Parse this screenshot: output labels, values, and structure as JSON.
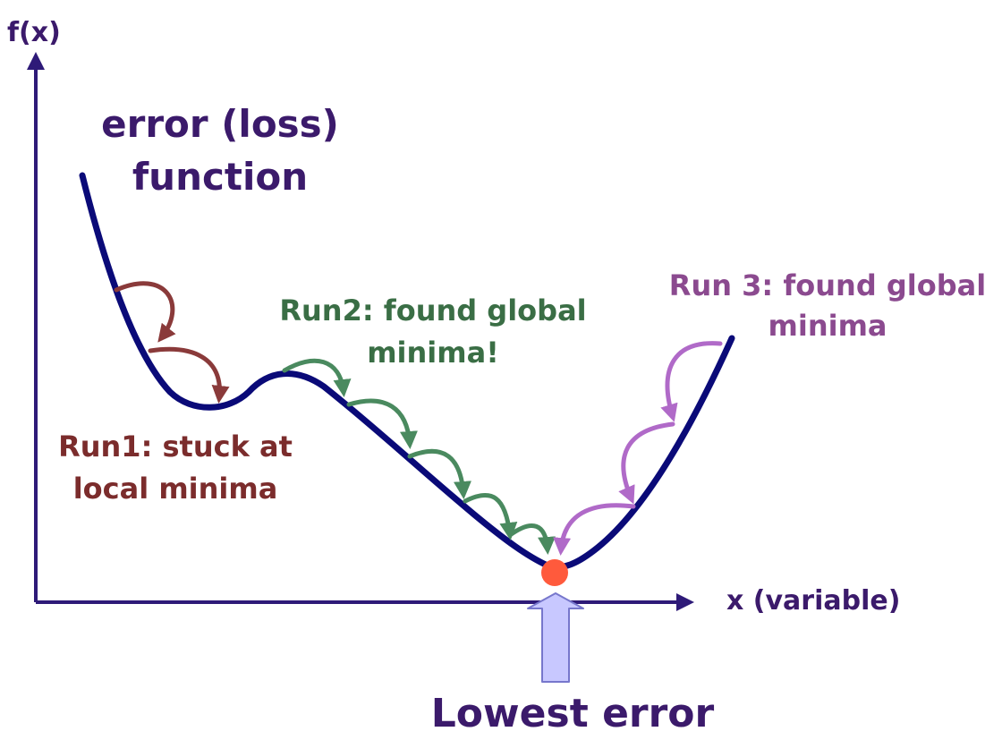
{
  "axes": {
    "y_label": "f(x)",
    "x_label": "x (variable)"
  },
  "curve": {
    "title_line1": "error (loss)",
    "title_line2": "function"
  },
  "runs": [
    {
      "line1": "Run1: stuck at",
      "line2": "local minima",
      "color": "#7b2c2c"
    },
    {
      "line1": "Run2: found global",
      "line2": "minima!",
      "color": "#3a6e45"
    },
    {
      "line1": "Run 3: found global",
      "line2": "minima",
      "color": "#8b4a8f"
    }
  ],
  "minimum": {
    "label": "Lowest error"
  },
  "colors": {
    "axis": "#2e1a78",
    "curve": "#0a0a78",
    "text_primary": "#3b1a6b",
    "run1_arrow": "#8a3a3a",
    "run2_arrow": "#4a8a5f",
    "run3_arrow": "#b06ac8",
    "min_dot": "#ff5a3c",
    "pointer_arrow_fill": "#c8c8ff",
    "pointer_arrow_stroke": "#7777cc"
  }
}
